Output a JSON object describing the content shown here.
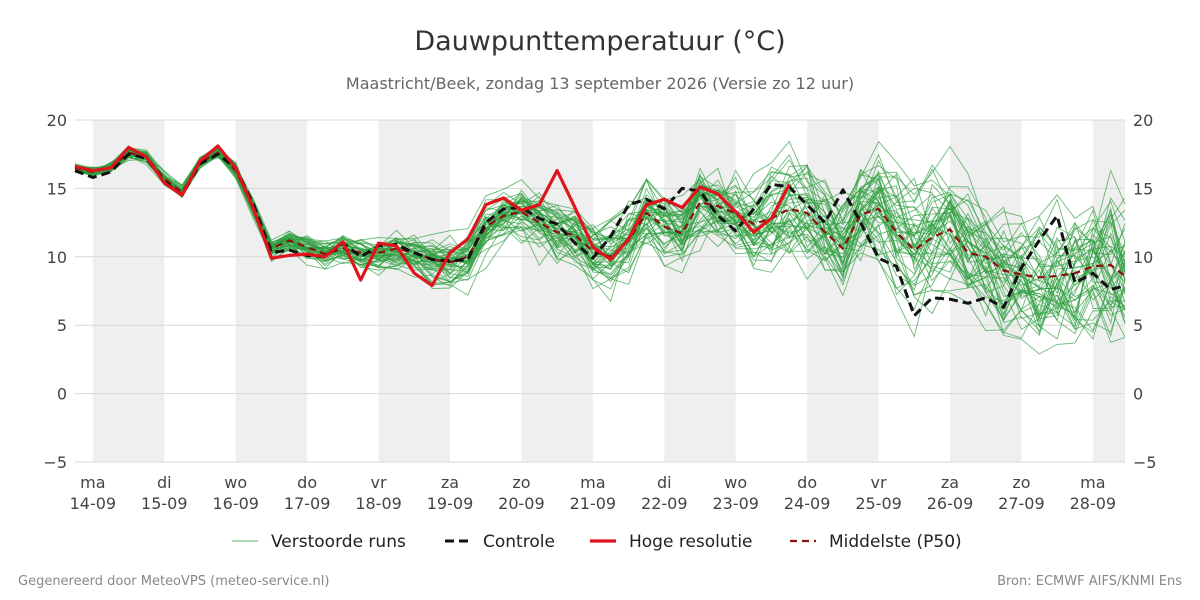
{
  "chart_data": {
    "type": "line",
    "title": "Dauwpunttemperatuur (°C)",
    "subtitle": "Maastricht/Beek, zondag 13 september 2026 (Versie zo 12 uur)",
    "ylim": [
      -5,
      20
    ],
    "yticks": [
      "−5",
      "0",
      "5",
      "10",
      "15",
      "20"
    ],
    "ytick_values": [
      -5,
      0,
      5,
      10,
      15,
      20
    ],
    "x_range_days": [
      -0.25,
      14.45
    ],
    "x_ticks": [
      {
        "day": "ma",
        "date": "14-09"
      },
      {
        "day": "di",
        "date": "15-09"
      },
      {
        "day": "wo",
        "date": "16-09"
      },
      {
        "day": "do",
        "date": "17-09"
      },
      {
        "day": "vr",
        "date": "18-09"
      },
      {
        "day": "za",
        "date": "19-09"
      },
      {
        "day": "zo",
        "date": "20-09"
      },
      {
        "day": "ma",
        "date": "21-09"
      },
      {
        "day": "di",
        "date": "22-09"
      },
      {
        "day": "wo",
        "date": "23-09"
      },
      {
        "day": "do",
        "date": "24-09"
      },
      {
        "day": "vr",
        "date": "25-09"
      },
      {
        "day": "za",
        "date": "26-09"
      },
      {
        "day": "zo",
        "date": "27-09"
      },
      {
        "day": "ma",
        "date": "28-09"
      }
    ],
    "grid": true,
    "legend_position": "bottom",
    "colors": {
      "ensemble": "#2e9e3e",
      "control": "#111111",
      "hires": "#e0141c",
      "median": "#8b1010",
      "shade": "#efefef",
      "grid": "#d8d8d8"
    },
    "series": [
      {
        "name": "Controle",
        "x": [
          -0.25,
          0,
          0.25,
          0.5,
          0.75,
          1,
          1.25,
          1.5,
          1.75,
          2,
          2.25,
          2.5,
          2.75,
          3,
          3.25,
          3.5,
          3.75,
          4,
          4.25,
          4.5,
          4.75,
          5,
          5.25,
          5.5,
          5.75,
          6,
          6.25,
          6.5,
          6.75,
          7,
          7.25,
          7.5,
          7.75,
          8,
          8.25,
          8.5,
          8.75,
          9,
          9.25,
          9.5,
          9.75,
          10,
          10.25,
          10.5,
          10.75,
          11,
          11.25,
          11.5,
          11.75,
          12,
          12.25,
          12.5,
          12.75,
          13,
          13.25,
          13.5,
          13.75,
          14,
          14.25,
          14.45
        ],
        "y": [
          16.3,
          15.8,
          16.2,
          17.5,
          17.2,
          15.5,
          14.5,
          16.8,
          17.5,
          16.5,
          13.8,
          10.3,
          10.5,
          10.1,
          10.0,
          11.0,
          10.0,
          10.8,
          10.9,
          10.3,
          9.8,
          9.7,
          9.8,
          12.5,
          13.5,
          13.6,
          12.8,
          12.4,
          11.0,
          9.9,
          11.5,
          13.8,
          14.2,
          13.5,
          15.0,
          14.8,
          13.0,
          11.9,
          13.5,
          15.3,
          15.1,
          13.8,
          12.5,
          14.9,
          12.5,
          9.9,
          9.3,
          5.7,
          7.0,
          6.9,
          6.6,
          7.0,
          6.3,
          9.2,
          11.2,
          13.0,
          8.1,
          8.8,
          7.6,
          7.9
        ]
      },
      {
        "name": "Hoge resolutie",
        "x": [
          -0.25,
          0,
          0.25,
          0.5,
          0.75,
          1,
          1.25,
          1.5,
          1.75,
          2,
          2.25,
          2.5,
          2.75,
          3,
          3.25,
          3.5,
          3.75,
          4,
          4.25,
          4.5,
          4.75,
          5,
          5.25,
          5.5,
          5.75,
          6,
          6.25,
          6.5,
          6.75,
          7,
          7.25,
          7.5,
          7.75,
          8,
          8.25,
          8.5,
          8.75,
          9,
          9.25,
          9.5,
          9.75
        ],
        "y": [
          16.6,
          16.3,
          16.5,
          18.0,
          17.3,
          15.4,
          14.5,
          17.0,
          18.1,
          16.5,
          13.5,
          9.9,
          10.1,
          10.2,
          10.0,
          11.1,
          8.3,
          11.0,
          10.8,
          8.8,
          7.9,
          10.3,
          11.3,
          13.8,
          14.3,
          13.4,
          13.8,
          16.3,
          13.6,
          10.7,
          9.8,
          11.3,
          13.8,
          14.2,
          13.6,
          15.1,
          14.6,
          13.3,
          11.8,
          12.8,
          15.3
        ]
      },
      {
        "name": "Middelste (P50)",
        "x": [
          -0.25,
          0,
          0.25,
          0.5,
          0.75,
          1,
          1.25,
          1.5,
          1.75,
          2,
          2.25,
          2.5,
          2.75,
          3,
          3.25,
          3.5,
          3.75,
          4,
          4.25,
          4.5,
          4.75,
          5,
          5.25,
          5.5,
          5.75,
          6,
          6.25,
          6.5,
          6.75,
          7,
          7.25,
          7.5,
          7.75,
          8,
          8.25,
          8.5,
          8.75,
          9,
          9.25,
          9.5,
          9.75,
          10,
          10.25,
          10.5,
          10.75,
          11,
          11.25,
          11.5,
          11.75,
          12,
          12.25,
          12.5,
          12.75,
          13,
          13.25,
          13.5,
          13.75,
          14,
          14.25,
          14.45
        ],
        "y": [
          16.5,
          16.2,
          16.5,
          17.6,
          17.3,
          15.7,
          14.7,
          16.9,
          17.6,
          16.3,
          13.5,
          10.6,
          11.2,
          10.7,
          10.2,
          10.6,
          10.3,
          10.3,
          10.6,
          10.3,
          9.8,
          9.6,
          10.0,
          12.2,
          13.0,
          13.3,
          12.5,
          11.8,
          11.6,
          10.4,
          10.0,
          11.2,
          13.2,
          12.2,
          11.7,
          14.0,
          13.7,
          13.2,
          12.4,
          12.8,
          13.5,
          13.2,
          11.8,
          10.6,
          13.1,
          13.5,
          11.8,
          10.5,
          11.4,
          12.0,
          10.3,
          10.0,
          9.0,
          8.7,
          8.5,
          8.6,
          8.8,
          9.3,
          9.4,
          8.6
        ]
      },
      {
        "name": "Verstoorde runs",
        "label_only": true
      }
    ],
    "legend": [
      "Verstoorde runs",
      "Controle",
      "Hoge resolutie",
      "Middelste (P50)"
    ]
  },
  "footer": {
    "left": "Gegenereerd door MeteoVPS (meteo-service.nl)",
    "right": "Bron: ECMWF AIFS/KNMI Ens"
  }
}
